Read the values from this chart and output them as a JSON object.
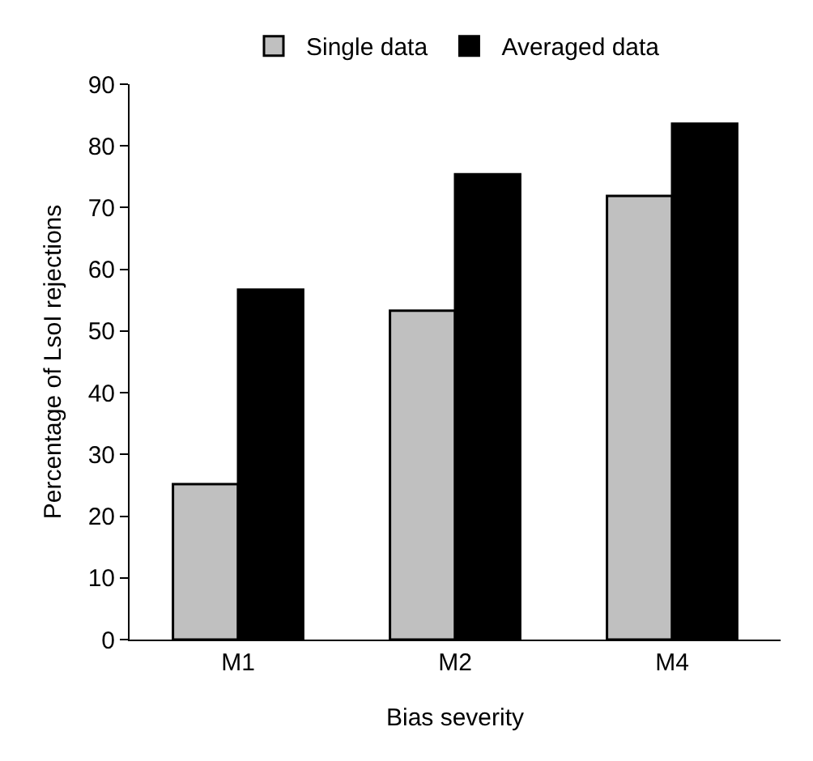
{
  "chart_data": {
    "type": "bar",
    "categories": [
      "M1",
      "M2",
      "M4"
    ],
    "series": [
      {
        "name": "Single data",
        "color": "#c0c0c0",
        "values": [
          25.2,
          53.3,
          71.9
        ]
      },
      {
        "name": "Averaged data",
        "color": "#000000",
        "values": [
          56.7,
          75.4,
          83.6
        ]
      }
    ],
    "xlabel": "Bias severity",
    "ylabel": "Percentage of LsoI rejections",
    "ylim": [
      0,
      90
    ],
    "yticks": [
      0,
      10,
      20,
      30,
      40,
      50,
      60,
      70,
      80,
      90
    ],
    "grid": false,
    "legend": "top"
  }
}
